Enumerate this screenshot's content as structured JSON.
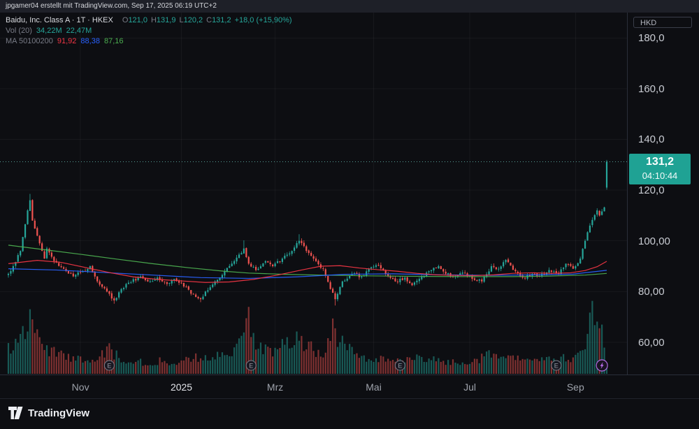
{
  "colors": {
    "bg": "#0d0e12",
    "up": "#26a69a",
    "down": "#ef5350",
    "ma50": "#f23645",
    "ma100": "#2962ff",
    "ma200": "#4caf50",
    "badge_bg": "#1fa294",
    "price_line": "#579f97",
    "grid": "rgba(255,255,255,0.045)",
    "axis_text": "#c9ccd3",
    "marker_stroke": "#787b86",
    "flash_purple": "#b36ae2"
  },
  "top_bar": {
    "attribution": "jpgamer04 erstellt mit TradingView.com, Sep 17, 2025 06:19 UTC+2"
  },
  "legend": {
    "symbol_line": {
      "title": "Baidu, Inc. Class A · 1T · HKEX",
      "o_label": "O",
      "o": "121,0",
      "h_label": "H",
      "h": "131,9",
      "l_label": "L",
      "l": "120,2",
      "c_label": "C",
      "c": "131,2",
      "change": "+18,0 (+15,90%)"
    },
    "volume_line": {
      "label": "Vol (20)",
      "value1": "34,22M",
      "value2": "22,47M"
    },
    "ma_line": {
      "label": "MA 50100200",
      "ma50": "91,92",
      "ma100": "88,38",
      "ma200": "87,16"
    }
  },
  "price_scale": {
    "currency": "HKD",
    "last_price": {
      "label": "131,2",
      "countdown": "04:10:44",
      "value": 131.2
    }
  },
  "footer": {
    "logo_text": "TradingView"
  },
  "chart_data": {
    "type": "candlestick",
    "title": "Baidu, Inc. Class A · 1T · HKEX",
    "symbol": "Baidu, Inc. Class A",
    "exchange": "HKEX",
    "interval": "1T",
    "currency": "HKD",
    "last_candle": {
      "open": 121.0,
      "high": 131.9,
      "low": 120.2,
      "close": 131.2,
      "change": 18.0,
      "change_pct": 15.9
    },
    "prev_close": 113.2,
    "current_price": 131.2,
    "countdown": "04:10:44",
    "ma_values": {
      "ma50": 91.92,
      "ma100": 88.38,
      "ma200": 87.16
    },
    "volume": {
      "ma20_millions": 34.22,
      "current_millions": 22.47,
      "scale_max_millions": 160,
      "anchors_millions": [
        [
          0,
          50
        ],
        [
          2,
          65
        ],
        [
          5,
          80
        ],
        [
          8,
          100
        ],
        [
          9,
          112
        ],
        [
          11,
          80
        ],
        [
          14,
          60
        ],
        [
          18,
          45
        ],
        [
          22,
          38
        ],
        [
          27,
          30
        ],
        [
          32,
          28
        ],
        [
          37,
          35
        ],
        [
          42,
          55
        ],
        [
          44,
          40
        ],
        [
          48,
          30
        ],
        [
          53,
          25
        ],
        [
          58,
          22
        ],
        [
          63,
          26
        ],
        [
          68,
          22
        ],
        [
          73,
          28
        ],
        [
          78,
          34
        ],
        [
          83,
          30
        ],
        [
          88,
          36
        ],
        [
          93,
          42
        ],
        [
          97,
          90
        ],
        [
          99,
          140
        ],
        [
          101,
          80
        ],
        [
          105,
          50
        ],
        [
          108,
          45
        ],
        [
          112,
          55
        ],
        [
          116,
          60
        ],
        [
          120,
          75
        ],
        [
          123,
          65
        ],
        [
          127,
          50
        ],
        [
          131,
          45
        ],
        [
          135,
          90
        ],
        [
          137,
          70
        ],
        [
          140,
          55
        ],
        [
          144,
          40
        ],
        [
          148,
          35
        ],
        [
          152,
          30
        ],
        [
          156,
          28
        ],
        [
          160,
          32
        ],
        [
          164,
          26
        ],
        [
          168,
          40
        ],
        [
          172,
          30
        ],
        [
          176,
          28
        ],
        [
          180,
          26
        ],
        [
          184,
          24
        ],
        [
          188,
          22
        ],
        [
          192,
          26
        ],
        [
          196,
          30
        ],
        [
          200,
          45
        ],
        [
          204,
          35
        ],
        [
          208,
          40
        ],
        [
          212,
          30
        ],
        [
          216,
          26
        ],
        [
          220,
          24
        ],
        [
          224,
          28
        ],
        [
          228,
          26
        ],
        [
          232,
          35
        ],
        [
          235,
          30
        ],
        [
          238,
          45
        ],
        [
          240,
          70
        ],
        [
          242,
          150
        ],
        [
          244,
          120
        ],
        [
          245,
          95
        ],
        [
          247,
          80
        ],
        [
          248,
          70
        ],
        [
          249,
          22.47
        ]
      ]
    },
    "candle_count": 250,
    "close_anchors": [
      [
        0,
        87
      ],
      [
        2,
        90
      ],
      [
        5,
        96
      ],
      [
        8,
        112
      ],
      [
        9,
        116
      ],
      [
        10,
        108
      ],
      [
        13,
        99
      ],
      [
        15,
        93
      ],
      [
        16,
        97
      ],
      [
        19,
        92
      ],
      [
        23,
        89
      ],
      [
        27,
        86
      ],
      [
        31,
        88
      ],
      [
        34,
        90
      ],
      [
        37,
        84
      ],
      [
        41,
        80
      ],
      [
        44,
        76.5
      ],
      [
        47,
        81
      ],
      [
        50,
        83.5
      ],
      [
        55,
        86
      ],
      [
        58,
        84
      ],
      [
        62,
        85.5
      ],
      [
        66,
        83
      ],
      [
        69,
        85
      ],
      [
        73,
        82
      ],
      [
        77,
        79
      ],
      [
        80,
        77
      ],
      [
        82,
        80
      ],
      [
        86,
        84
      ],
      [
        90,
        88
      ],
      [
        94,
        92
      ],
      [
        98,
        97
      ],
      [
        100,
        91
      ],
      [
        103,
        88.5
      ],
      [
        107,
        92
      ],
      [
        110,
        90
      ],
      [
        114,
        93
      ],
      [
        117,
        95
      ],
      [
        121,
        100
      ],
      [
        124,
        96
      ],
      [
        128,
        92
      ],
      [
        131,
        89
      ],
      [
        134,
        81
      ],
      [
        136,
        77
      ],
      [
        139,
        84
      ],
      [
        143,
        87
      ],
      [
        147,
        86
      ],
      [
        150,
        89
      ],
      [
        154,
        90.5
      ],
      [
        157,
        87
      ],
      [
        161,
        84
      ],
      [
        165,
        85.5
      ],
      [
        168,
        82.5
      ],
      [
        171,
        85
      ],
      [
        175,
        88
      ],
      [
        179,
        90
      ],
      [
        182,
        87
      ],
      [
        186,
        86
      ],
      [
        189,
        87.5
      ],
      [
        193,
        85
      ],
      [
        197,
        84
      ],
      [
        201,
        90
      ],
      [
        204,
        89
      ],
      [
        207,
        92.5
      ],
      [
        211,
        88
      ],
      [
        214,
        85.5
      ],
      [
        218,
        87
      ],
      [
        221,
        86
      ],
      [
        225,
        88.5
      ],
      [
        229,
        87
      ],
      [
        232,
        91
      ],
      [
        235,
        89
      ],
      [
        238,
        93
      ],
      [
        240,
        100
      ],
      [
        242,
        106
      ],
      [
        245,
        112
      ],
      [
        246,
        110
      ],
      [
        248,
        113.2
      ],
      [
        249,
        131.2
      ]
    ],
    "wick_overrides": {
      "9": {
        "high": 118.5
      },
      "44": {
        "low": 75.2
      },
      "80": {
        "low": 75.8
      },
      "98": {
        "high": 100.2
      },
      "121": {
        "high": 102.6
      },
      "136": {
        "low": 74.5
      }
    },
    "ma50_anchors": [
      [
        0,
        91
      ],
      [
        12,
        92.3
      ],
      [
        22,
        91.5
      ],
      [
        32,
        89.5
      ],
      [
        42,
        87.5
      ],
      [
        52,
        85.8
      ],
      [
        62,
        84.8
      ],
      [
        72,
        84.2
      ],
      [
        82,
        83.6
      ],
      [
        92,
        83.8
      ],
      [
        102,
        84.8
      ],
      [
        112,
        86.5
      ],
      [
        122,
        88.5
      ],
      [
        130,
        90
      ],
      [
        138,
        90.2
      ],
      [
        146,
        89.3
      ],
      [
        154,
        88.6
      ],
      [
        162,
        88
      ],
      [
        170,
        87.2
      ],
      [
        178,
        86.6
      ],
      [
        186,
        86.4
      ],
      [
        194,
        86.3
      ],
      [
        202,
        86.6
      ],
      [
        210,
        87.2
      ],
      [
        218,
        87.4
      ],
      [
        226,
        87.2
      ],
      [
        234,
        87.4
      ],
      [
        240,
        88.3
      ],
      [
        245,
        89.8
      ],
      [
        249,
        91.92
      ]
    ],
    "ma100_anchors": [
      [
        0,
        89
      ],
      [
        20,
        88.5
      ],
      [
        40,
        87.5
      ],
      [
        60,
        86.5
      ],
      [
        80,
        85.5
      ],
      [
        100,
        85.2
      ],
      [
        120,
        85.8
      ],
      [
        140,
        86.8
      ],
      [
        160,
        87
      ],
      [
        180,
        86.6
      ],
      [
        200,
        86.4
      ],
      [
        220,
        86.6
      ],
      [
        235,
        86.9
      ],
      [
        249,
        88.38
      ]
    ],
    "ma200_anchors": [
      [
        0,
        98.3
      ],
      [
        15,
        96.5
      ],
      [
        30,
        94.7
      ],
      [
        45,
        92.8
      ],
      [
        60,
        91
      ],
      [
        75,
        89.4
      ],
      [
        90,
        88
      ],
      [
        100,
        87.3
      ],
      [
        115,
        86.8
      ],
      [
        130,
        86.5
      ],
      [
        150,
        86.2
      ],
      [
        170,
        86.0
      ],
      [
        190,
        85.9
      ],
      [
        210,
        85.9
      ],
      [
        225,
        86.1
      ],
      [
        240,
        86.5
      ],
      [
        249,
        87.16
      ]
    ],
    "y_axis": {
      "visible_range": [
        47.3,
        190.0
      ],
      "ticks": [
        {
          "label": "180,0",
          "value": 180
        },
        {
          "label": "160,0",
          "value": 160
        },
        {
          "label": "140,0",
          "value": 140
        },
        {
          "label": "120,0",
          "value": 120
        },
        {
          "label": "100,00",
          "value": 100
        },
        {
          "label": "80,00",
          "value": 80
        },
        {
          "label": "60,00",
          "value": 60
        }
      ]
    },
    "x_axis": {
      "labels": [
        {
          "label": "Nov",
          "index": 30,
          "emph": false
        },
        {
          "label": "2025",
          "index": 72,
          "emph": true
        },
        {
          "label": "Mrz",
          "index": 111,
          "emph": false
        },
        {
          "label": "Mai",
          "index": 152,
          "emph": false
        },
        {
          "label": "Jul",
          "index": 192,
          "emph": false
        },
        {
          "label": "Sep",
          "index": 236,
          "emph": false
        }
      ]
    },
    "markers": {
      "earnings_indices": [
        42,
        101,
        163,
        228
      ],
      "flash_index": 247
    }
  }
}
